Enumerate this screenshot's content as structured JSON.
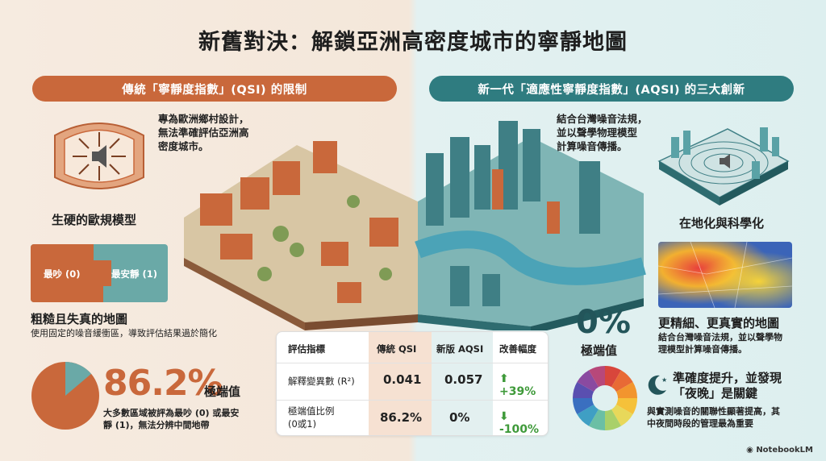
{
  "title": "新舊對決：解鎖亞洲高密度城市的寧靜地圖",
  "left": {
    "banner": "傳統「寧靜度指數」(QSI) 的限制",
    "desc_lines": [
      "專為歐洲鄉村設計，",
      "無法準確評估亞洲高",
      "密度城市。"
    ],
    "model_label": "生硬的歐規模型",
    "legend_noisy": "最吵 (0)",
    "legend_quiet": "最安靜 (1)",
    "map_heading": "粗糙且失真的地圖",
    "map_note": "使用固定的噪音緩衝區，導致評估結果過於簡化",
    "pct": "86.2%",
    "pct_label": "極端值",
    "pct_note_lines": [
      "大多數區域被評為最吵 (0) 或最安",
      "靜 (1)，無法分辨中間地帶"
    ]
  },
  "right": {
    "banner": "新一代「適應性寧靜度指數」(AQSI) 的三大創新",
    "desc_lines": [
      "結合台灣噪音法規，",
      "並以聲學物理模型",
      "計算噪音傳播。"
    ],
    "local_label": "在地化與科學化",
    "map_heading": "更精細、更真實的地圖",
    "map_note_lines": [
      "結合台灣噪音法規，並以聲學物",
      "理模型計算噪音傳播。"
    ],
    "zero": "0%",
    "zero_label": "極端值",
    "night_heading_lines": [
      "準確度提升，並發現",
      "「夜晚」是關鍵"
    ],
    "night_note_lines": [
      "與實測噪音的關聯性顯著提高，其",
      "中夜間時段的管理最為重要"
    ]
  },
  "table": {
    "headers": [
      "評估指標",
      "傳統 QSI",
      "新版 AQSI",
      "改善幅度"
    ],
    "rows": [
      {
        "metric": "解釋變異數 (R²)",
        "old": "0.041",
        "new": "0.057",
        "change": "+39%",
        "arrow": "up"
      },
      {
        "metric_lines": [
          "極端值比例",
          "(0或1)"
        ],
        "old": "86.2%",
        "new": "0%",
        "change": "-100%",
        "arrow": "down"
      }
    ]
  },
  "pie": {
    "extreme": 86.2,
    "middle": 13.8,
    "colors": [
      "#c9683b",
      "#6aa9a7",
      "#e8d9c8"
    ]
  },
  "footer": "NotebookLM"
}
